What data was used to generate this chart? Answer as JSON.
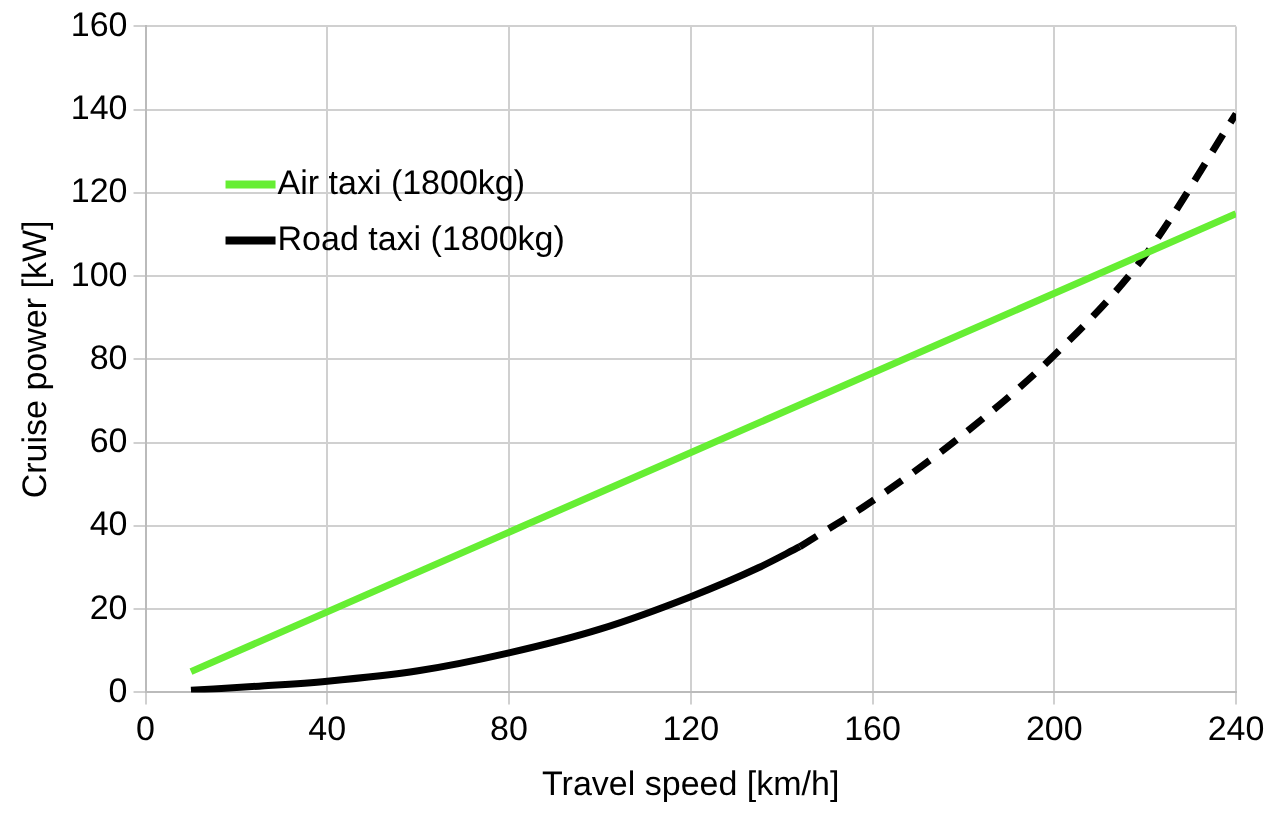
{
  "chart_data": {
    "type": "line",
    "xlabel": "Travel speed [km/h]",
    "ylabel": "Cruise power [kW]",
    "xlim": [
      0,
      240
    ],
    "xticks": [
      0,
      40,
      80,
      120,
      160,
      200,
      240
    ],
    "ylim": [
      0,
      160
    ],
    "yticks": [
      0,
      20,
      40,
      60,
      80,
      100,
      120,
      140,
      160
    ],
    "grid": true,
    "legend": "top left",
    "marker": "none",
    "series": [
      {
        "name": "Air taxi (1800kg)",
        "color": "#66ee33",
        "x": [
          10,
          240
        ],
        "values": [
          5,
          115
        ]
      },
      {
        "name": "Road taxi (1800kg)",
        "color": "#000000",
        "x": [
          10,
          25,
          40,
          60,
          80,
          100,
          120,
          135,
          144
        ],
        "values": [
          0.5,
          1.5,
          2.7,
          5.2,
          9.5,
          15.2,
          23,
          30,
          35
        ],
        "line_style": "solid"
      },
      {
        "color": "#000000",
        "x": [
          144,
          160,
          180,
          200,
          220,
          240
        ],
        "values": [
          35,
          46,
          62,
          81,
          105,
          139
        ],
        "line_style": "dashed"
      }
    ]
  }
}
